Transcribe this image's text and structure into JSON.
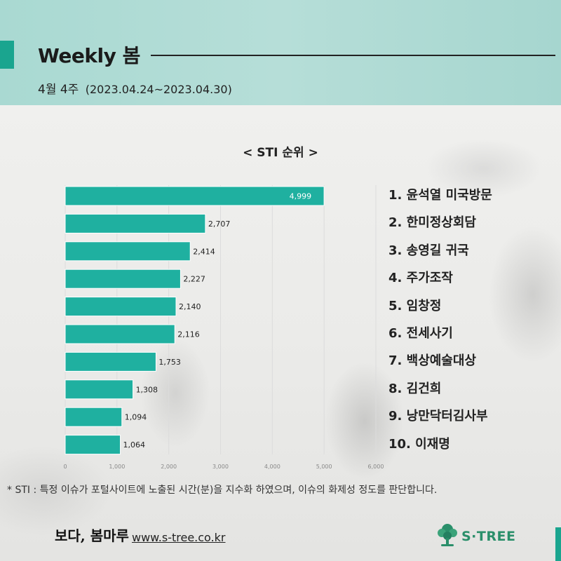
{
  "header": {
    "title": "Weekly 봄",
    "week_label": "4월 4주",
    "date_range": "(2023.04.24~2023.04.30)"
  },
  "colors": {
    "accent": "#1aa58f",
    "bar": "#1fb0a0",
    "header_bg": "#a9d9d2"
  },
  "chart_data": {
    "type": "bar",
    "orientation": "horizontal",
    "title": "< STI 순위 >",
    "categories": [
      "1. 윤석열 미국방문",
      "2. 한미정상회담",
      "3. 송영길 귀국",
      "4. 주가조작",
      "5. 임창정",
      "6. 전세사기",
      "7. 백상예술대상",
      "8. 김건희",
      "9. 낭만닥터김사부",
      "10. 이재명"
    ],
    "values": [
      4999,
      2707,
      2414,
      2227,
      2140,
      2116,
      1753,
      1308,
      1094,
      1064
    ],
    "data_labels": [
      "4,999",
      "2,707",
      "2,414",
      "2,227",
      "2,140",
      "2,116",
      "1,753",
      "1,308",
      "1,094",
      "1,064"
    ],
    "xlim": [
      0,
      6000
    ],
    "x_ticks": [
      0,
      1000,
      2000,
      3000,
      4000,
      5000,
      6000
    ],
    "x_tick_labels": [
      "0",
      "1,000",
      "2,000",
      "3,000",
      "4,000",
      "5,000",
      "6,000"
    ],
    "grid": true
  },
  "footer": {
    "note": "* STI : 특정 이슈가 포털사이트에 노출된 시간(분)을 지수화 하였으며, 이슈의 화제성 정도를 판단합니다.",
    "signature": "보다, 봄마루",
    "url": "www.s-tree.co.kr",
    "logo_text": "S·TREE",
    "logo_icon": "tree-icon"
  }
}
